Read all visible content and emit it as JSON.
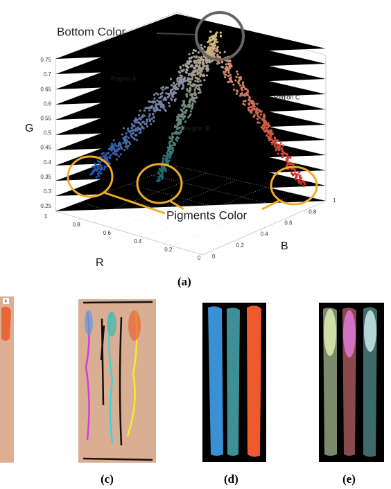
{
  "figure_a": {
    "annotations": {
      "bottom_color": "Bottom Color",
      "pigments_color": "Pigments Color"
    },
    "regions": [
      "Region A",
      "Region B",
      "Region C"
    ],
    "axes": {
      "g": {
        "label": "G",
        "ticks": [
          "0.25",
          "0.3",
          "0.35",
          "0.4",
          "0.45",
          "0.5",
          "0.55",
          "0.6",
          "0.65",
          "0.7",
          "0.75"
        ]
      },
      "r": {
        "label": "R",
        "ticks": [
          "1",
          "0.8",
          "0.6",
          "0.4",
          "0.2",
          "0"
        ]
      },
      "b": {
        "label": "B",
        "ticks": [
          "0",
          "0.2",
          "0.4",
          "0.6",
          "0.8",
          "1"
        ]
      }
    },
    "caption": "(a)"
  },
  "panel_b_letter": "c",
  "panels": [
    {
      "caption": "(c)"
    },
    {
      "caption": "(d)"
    },
    {
      "caption": "(e)"
    }
  ]
}
